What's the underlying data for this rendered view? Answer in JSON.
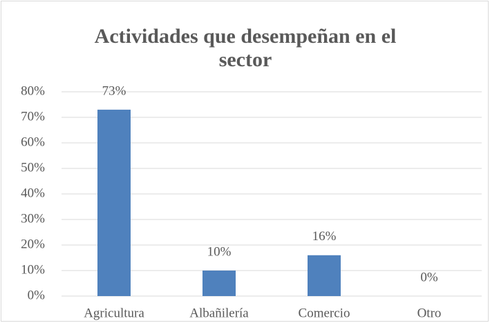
{
  "chart_data": {
    "type": "bar",
    "title": "Actividades que desempeñan en el sector",
    "categories": [
      "Agricultura",
      "Albañilería",
      "Comercio",
      "Otro"
    ],
    "values": [
      73,
      10,
      16,
      0
    ],
    "value_labels": [
      "73%",
      "10%",
      "16%",
      "0%"
    ],
    "color": "#4f81bd",
    "ylim": [
      0,
      80
    ],
    "yticks": [
      {
        "value": 0,
        "label": "0%"
      },
      {
        "value": 10,
        "label": "10%"
      },
      {
        "value": 20,
        "label": "20%"
      },
      {
        "value": 30,
        "label": "30%"
      },
      {
        "value": 40,
        "label": "40%"
      },
      {
        "value": 50,
        "label": "50%"
      },
      {
        "value": 60,
        "label": "60%"
      },
      {
        "value": 70,
        "label": "70%"
      },
      {
        "value": 80,
        "label": "80%"
      }
    ],
    "grid": true
  }
}
